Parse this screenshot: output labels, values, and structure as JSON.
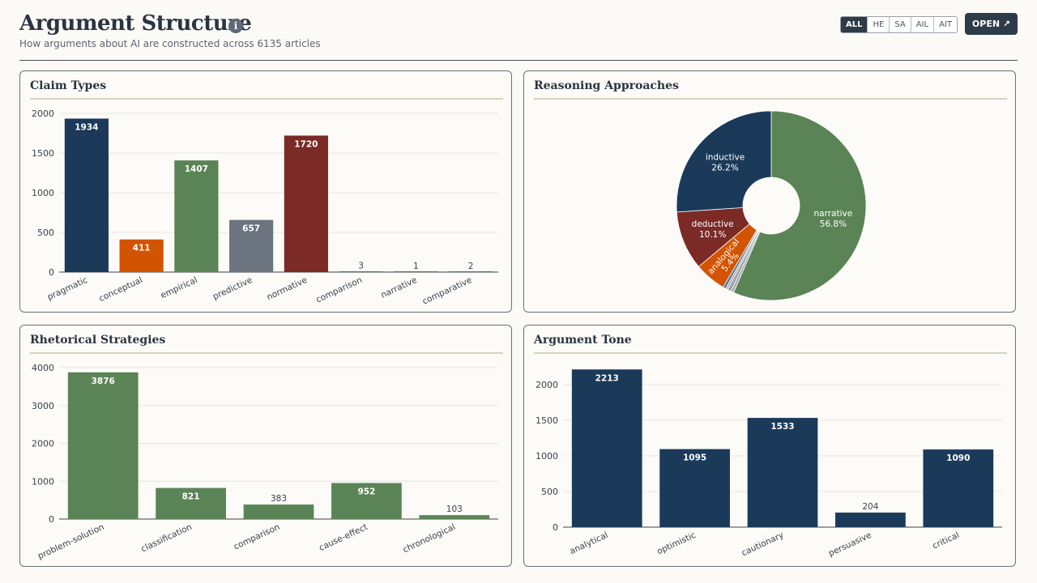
{
  "header": {
    "title": "Argument Structure",
    "info_icon": "i",
    "subtitle": "How arguments about AI are constructed across 6135 articles",
    "filters": [
      "ALL",
      "HE",
      "SA",
      "AIL",
      "AIT"
    ],
    "active_filter": "ALL",
    "open_label": "OPEN ↗"
  },
  "colors": {
    "navy": "#1b3a5a",
    "orange": "#d35400",
    "green": "#5a8456",
    "gray": "#6c7480",
    "red": "#7b2a26",
    "blue": "#3b78b0"
  },
  "chart_data": [
    {
      "id": "claim",
      "type": "bar",
      "title": "Claim Types",
      "categories": [
        "pragmatic",
        "conceptual",
        "empirical",
        "predictive",
        "normative",
        "comparison",
        "narrative",
        "comparative"
      ],
      "values": [
        1934,
        411,
        1407,
        657,
        1720,
        3,
        1,
        2
      ],
      "bar_colors": [
        "#1b3a5a",
        "#d35400",
        "#5a8456",
        "#6c7480",
        "#7b2a26",
        "#5a8456",
        "#5a8456",
        "#5a8456"
      ],
      "ylim": [
        0,
        2000
      ],
      "yticks": [
        0,
        500,
        1000,
        1500,
        2000
      ],
      "grid": true
    },
    {
      "id": "reasoning",
      "type": "pie",
      "title": "Reasoning Approaches",
      "slices": [
        {
          "label": "narrative",
          "value": 56.8,
          "color": "#5a8456",
          "display": "56.8%"
        },
        {
          "label": "",
          "value": 0.5,
          "color": "#a9a9a9",
          "display": ""
        },
        {
          "label": "",
          "value": 0.6,
          "color": "#8aa0b8",
          "display": ""
        },
        {
          "label": "",
          "value": 0.4,
          "color": "#d4a072",
          "display": ""
        },
        {
          "label": "",
          "value": 0.5,
          "color": "#3b78b0",
          "display": ""
        },
        {
          "label": "analogical",
          "value": 5.4,
          "color": "#d35400",
          "display": "5.4%"
        },
        {
          "label": "deductive",
          "value": 10.1,
          "color": "#7b2a26",
          "display": "10.1%"
        },
        {
          "label": "inductive",
          "value": 26.2,
          "color": "#1b3a5a",
          "display": "26.2%"
        }
      ],
      "donut": true
    },
    {
      "id": "rhetorical",
      "type": "bar",
      "title": "Rhetorical Strategies",
      "categories": [
        "problem-solution",
        "classification",
        "comparison",
        "cause-effect",
        "chronological"
      ],
      "values": [
        3876,
        821,
        383,
        952,
        103
      ],
      "bar_colors": [
        "#5a8456",
        "#5a8456",
        "#5a8456",
        "#5a8456",
        "#5a8456"
      ],
      "ylim": [
        0,
        4000
      ],
      "yticks": [
        0,
        1000,
        2000,
        3000,
        4000
      ],
      "grid": true
    },
    {
      "id": "tone",
      "type": "bar",
      "title": "Argument Tone",
      "categories": [
        "analytical",
        "optimistic",
        "cautionary",
        "persuasive",
        "critical"
      ],
      "values": [
        2213,
        1095,
        1533,
        204,
        1090
      ],
      "bar_colors": [
        "#1b3a5a",
        "#1b3a5a",
        "#1b3a5a",
        "#1b3a5a",
        "#1b3a5a"
      ],
      "ylim": [
        0,
        2250
      ],
      "yticks": [
        0,
        500,
        1000,
        1500,
        2000
      ],
      "grid": true
    }
  ]
}
